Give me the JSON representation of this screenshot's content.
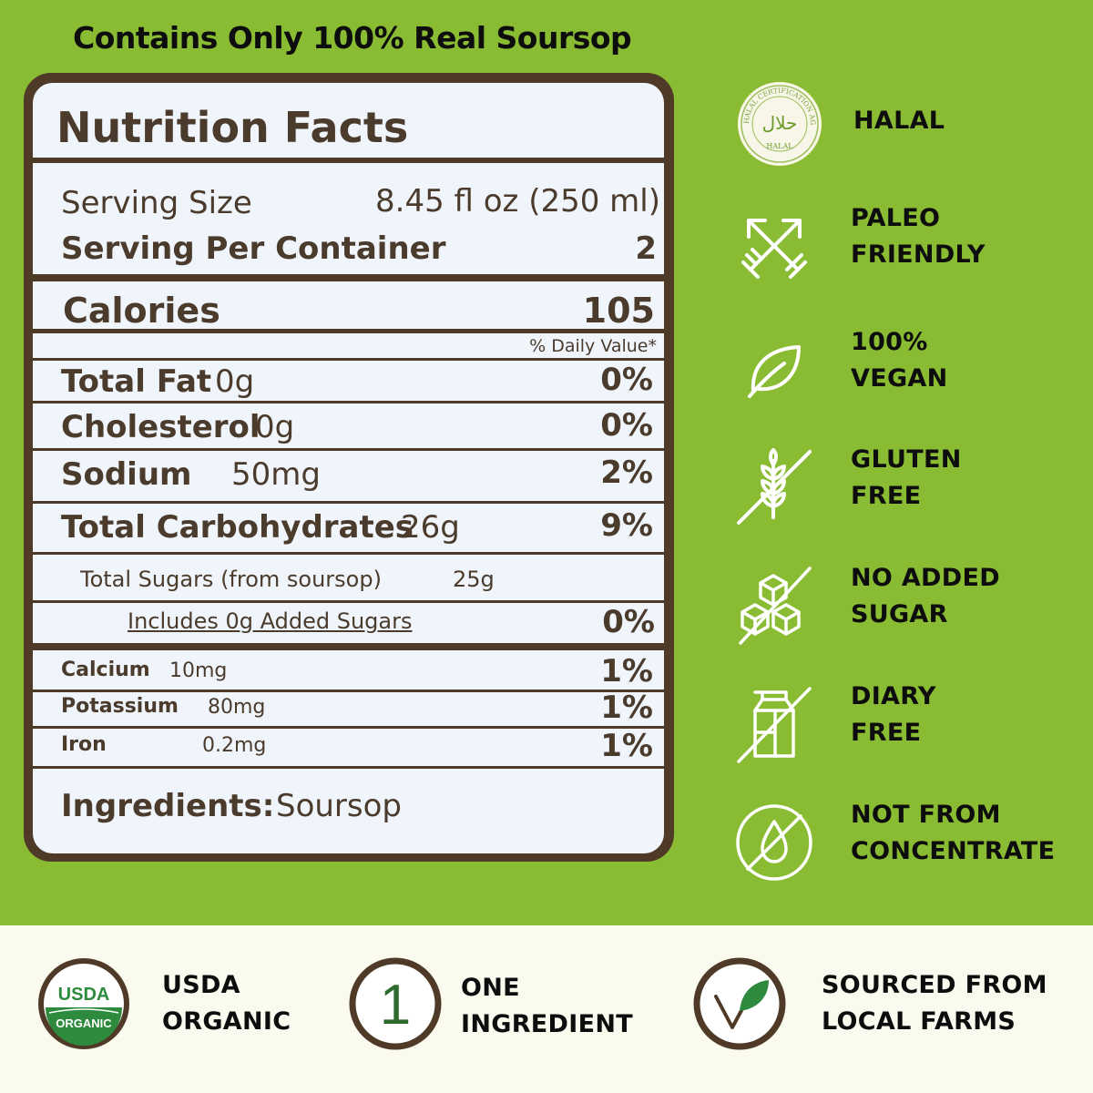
{
  "headline": "Contains Only 100% Real Soursop",
  "nutrition": {
    "title": "Nutrition Facts",
    "serving_size_label": "Serving Size",
    "serving_size_value": "8.45 fl oz (250 ml)",
    "servings_label": "Serving Per Container",
    "servings_value": "2",
    "calories_label": "Calories",
    "calories_value": "105",
    "dv_header": "% Daily Value*",
    "rows": [
      {
        "label": "Total Fat",
        "amount": "0g",
        "dv": "0%"
      },
      {
        "label": "Cholesterol",
        "amount": "0g",
        "dv": "0%"
      },
      {
        "label": "Sodium",
        "amount": "50mg",
        "dv": "2%"
      },
      {
        "label": "Total Carbohydrates",
        "amount": "26g",
        "dv": "9%"
      }
    ],
    "sugars_label": "Total Sugars (from soursop)",
    "sugars_amount": "25g",
    "added_sugars_label": "Includes 0g Added Sugars",
    "added_sugars_dv": "0%",
    "minerals": [
      {
        "label": "Calcium",
        "amount": "10mg",
        "dv": "1%"
      },
      {
        "label": "Potassium",
        "amount": "80mg",
        "dv": "1%"
      },
      {
        "label": "Iron",
        "amount": "0.2mg",
        "dv": "1%"
      }
    ],
    "ingredients_label": "Ingredients:",
    "ingredients_value": "Soursop"
  },
  "features": [
    {
      "icon": "halal-seal-icon",
      "line1": "HALAL",
      "line2": "",
      "seal_text": "HALAL CERTIFICATION AGENCY",
      "seal_arabic": "حلال",
      "seal_bottom": "HALAL"
    },
    {
      "icon": "crossed-arrows-icon",
      "line1": "PALEO",
      "line2": "FRIENDLY"
    },
    {
      "icon": "leaf-icon",
      "line1": "100%",
      "line2": "VEGAN"
    },
    {
      "icon": "wheat-crossed-icon",
      "line1": "GLUTEN",
      "line2": "FREE"
    },
    {
      "icon": "sugar-cubes-crossed-icon",
      "line1": "NO ADDED",
      "line2": "SUGAR"
    },
    {
      "icon": "milk-carton-crossed-icon",
      "line1": "DIARY",
      "line2": "FREE"
    },
    {
      "icon": "drop-crossed-icon",
      "line1": "NOT FROM",
      "line2": "CONCENTRATE"
    }
  ],
  "badges": [
    {
      "icon": "usda-organic-icon",
      "line1": "USDA",
      "line2": "ORGANIC",
      "logo_top": "USDA",
      "logo_bottom": "ORGANIC"
    },
    {
      "icon": "number-one-icon",
      "line1": "ONE",
      "line2": "INGREDIENT",
      "digit": "1"
    },
    {
      "icon": "check-leaf-icon",
      "line1": "SOURCED FROM",
      "line2": "LOCAL FARMS"
    }
  ],
  "colors": {
    "background_green": "#8abc33",
    "panel_brown": "#4f3a28",
    "panel_fill": "#f0f5fb",
    "text_brown": "#4a3b2c",
    "bottom_cream": "#fbfaef",
    "organic_green": "#2e8b3e"
  }
}
